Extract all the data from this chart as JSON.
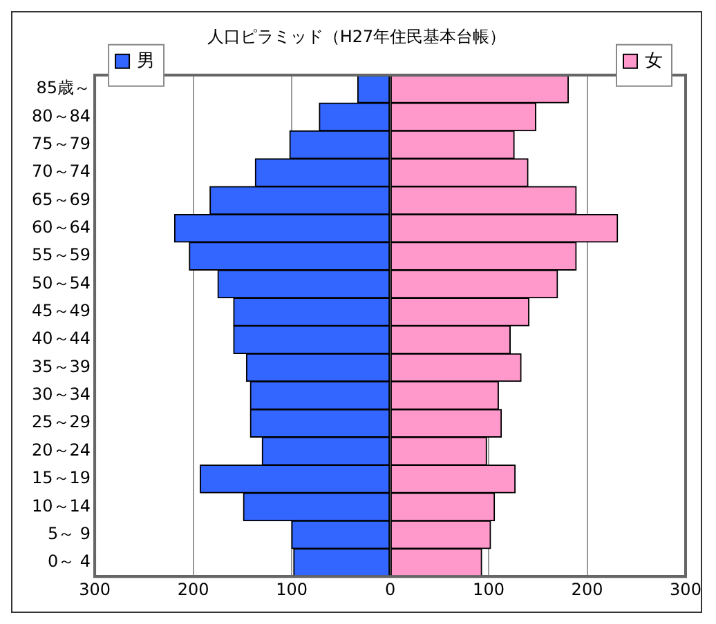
{
  "chart_data": {
    "type": "bar",
    "orientation": "horizontal",
    "stacked": true,
    "title": "人口ピラミッド（H27年住民基本台帳）",
    "categories": [
      "85歳～",
      "80～84",
      "75～79",
      "70～74",
      "65～69",
      "60～64",
      "55～59",
      "50～54",
      "45～49",
      "40～44",
      "35～39",
      "30～34",
      "25～29",
      "20～24",
      "15～19",
      "10～14",
      "5～ 9",
      "0～ 4"
    ],
    "series": [
      {
        "name": "男",
        "color": "#3366ff",
        "values": [
          -33,
          -72,
          -102,
          -137,
          -183,
          -219,
          -204,
          -175,
          -159,
          -159,
          -146,
          -142,
          -142,
          -130,
          -193,
          -149,
          -100,
          -98
        ]
      },
      {
        "name": "女",
        "color": "#ff99cc",
        "values": [
          181,
          148,
          126,
          140,
          189,
          231,
          189,
          170,
          141,
          122,
          133,
          110,
          113,
          98,
          127,
          106,
          102,
          93
        ]
      }
    ],
    "xlim": [
      -300,
      300
    ],
    "xticks": [
      {
        "value": -300,
        "label": "300"
      },
      {
        "value": -200,
        "label": "200"
      },
      {
        "value": -100,
        "label": "100"
      },
      0,
      100,
      200,
      300
    ],
    "grid": "x",
    "legend": "top"
  }
}
